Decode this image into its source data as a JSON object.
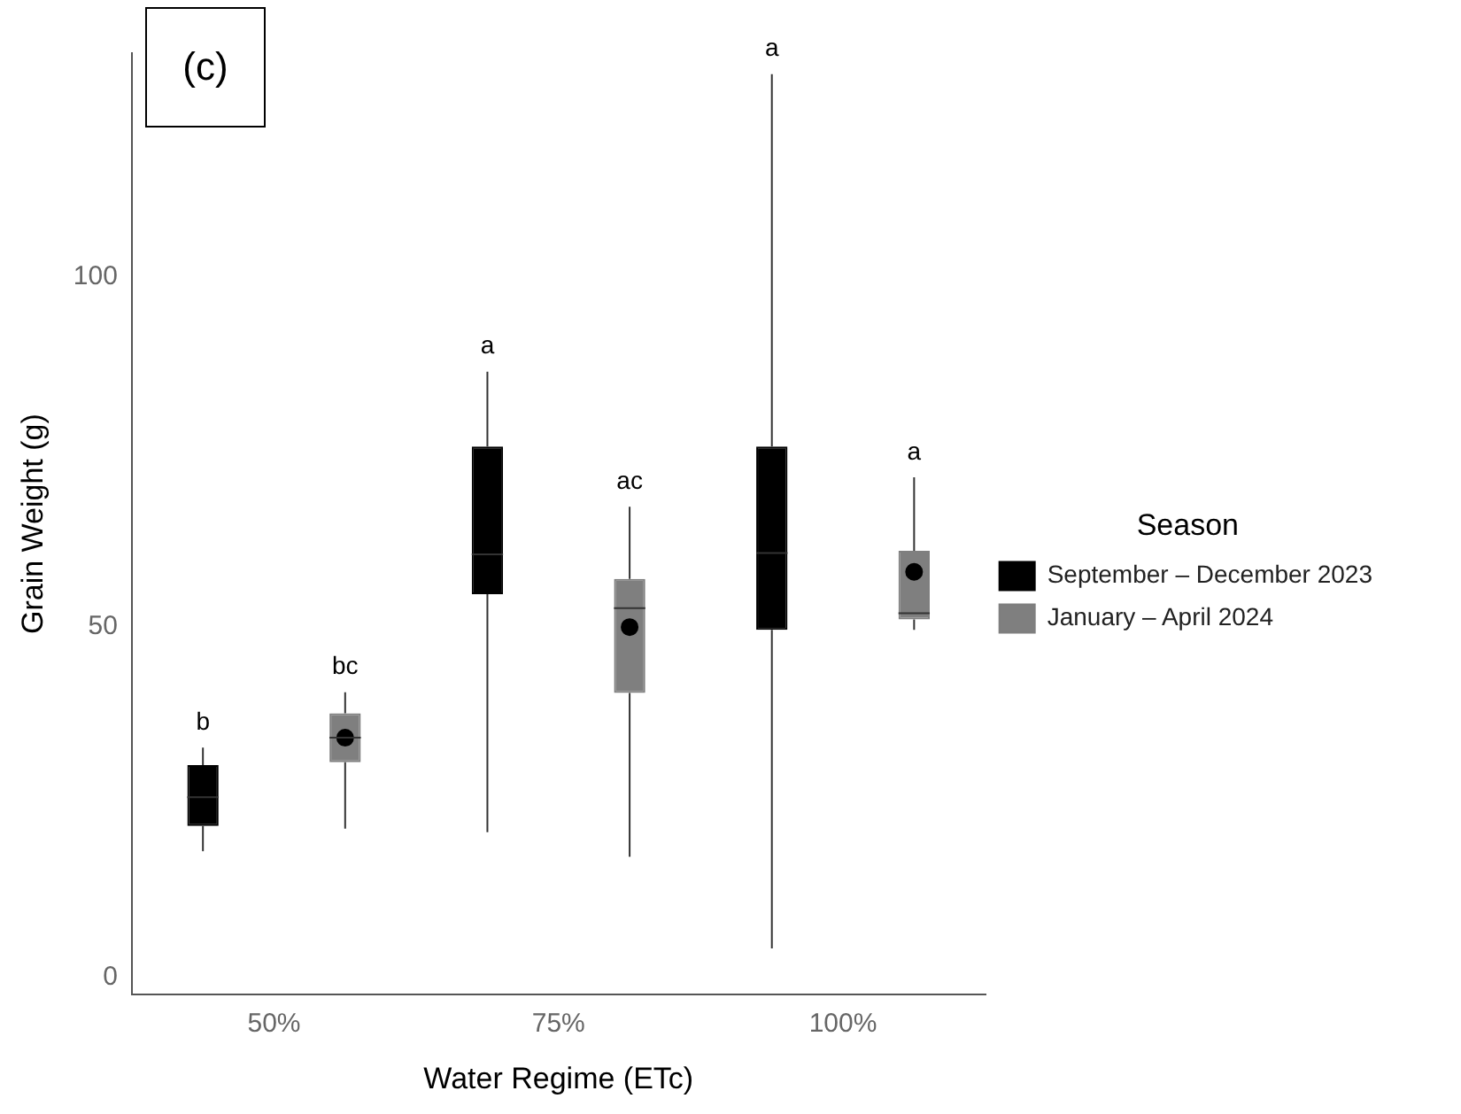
{
  "chart_data": {
    "type": "box",
    "title": "(c)",
    "xlabel": "Water Regime (ETc)",
    "ylabel": "Grain Weight (g)",
    "legend_title": "Season",
    "legend": "right",
    "grid": false,
    "categories": [
      "50%",
      "75%",
      "100%"
    ],
    "ylim": [
      -2.5,
      132
    ],
    "yticks": [
      0,
      50,
      100
    ],
    "series": [
      {
        "name": "September – December 2023",
        "color": "#000000",
        "boxes": [
          {
            "low": 18,
            "q1": 21.6,
            "median": 25.7,
            "q3": 30.3,
            "high": 32.8
          },
          {
            "low": 20.7,
            "q1": 54.7,
            "median": 60.4,
            "q3": 75.8,
            "high": 86.5
          },
          {
            "low": 4.1,
            "q1": 49.6,
            "median": 60.6,
            "q3": 75.8,
            "high": 129
          }
        ]
      },
      {
        "name": "January – April 2024",
        "color": "#7f7f7f",
        "boxes": [
          {
            "low": 21.2,
            "q1": 30.7,
            "median": 34.2,
            "q3": 37.7,
            "high": 40.7,
            "mean": 34.2
          },
          {
            "low": 17.2,
            "q1": 40.6,
            "median": 52.7,
            "q3": 56.9,
            "high": 67.2,
            "mean": 50
          },
          {
            "low": 49.6,
            "q1": 51.1,
            "median": 52,
            "q3": 60.9,
            "high": 71.4,
            "mean": 57.9
          }
        ]
      }
    ],
    "annotations": [
      "b",
      "bc",
      "a",
      "ac",
      "a",
      "a"
    ]
  }
}
